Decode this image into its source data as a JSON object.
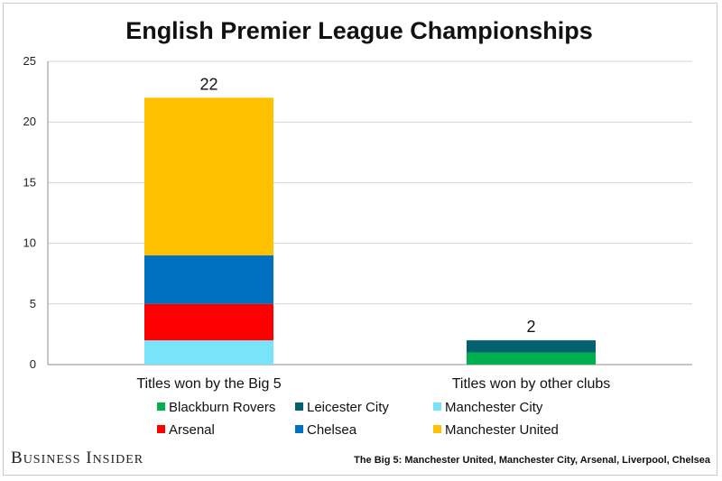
{
  "chart_data": {
    "type": "bar",
    "stacked": true,
    "title": "English Premier League Championships",
    "categories": [
      "Titles won by the Big 5",
      "Titles won by other clubs"
    ],
    "ylim": [
      0,
      25
    ],
    "yticks": [
      0,
      5,
      10,
      15,
      20,
      25
    ],
    "grid": true,
    "legend_position": "bottom",
    "totals": [
      "22",
      "2"
    ],
    "series": [
      {
        "name": "Manchester City",
        "color": "#79e3fc",
        "values": [
          2,
          0
        ]
      },
      {
        "name": "Arsenal",
        "color": "#ff0000",
        "values": [
          3,
          0
        ]
      },
      {
        "name": "Chelsea",
        "color": "#0070c0",
        "values": [
          4,
          0
        ]
      },
      {
        "name": "Manchester United",
        "color": "#ffc000",
        "values": [
          13,
          0
        ]
      },
      {
        "name": "Blackburn Rovers",
        "color": "#00b050",
        "values": [
          0,
          1
        ]
      },
      {
        "name": "Leicester City",
        "color": "#03606e",
        "values": [
          0,
          1
        ]
      }
    ],
    "legend_order": [
      "Blackburn Rovers",
      "Leicester City",
      "Manchester City",
      "Arsenal",
      "Chelsea",
      "Manchester United"
    ]
  },
  "footer": {
    "brand": "Business Insider",
    "note": "The Big 5: Manchester United, Manchester City, Arsenal, Liverpool, Chelsea"
  }
}
